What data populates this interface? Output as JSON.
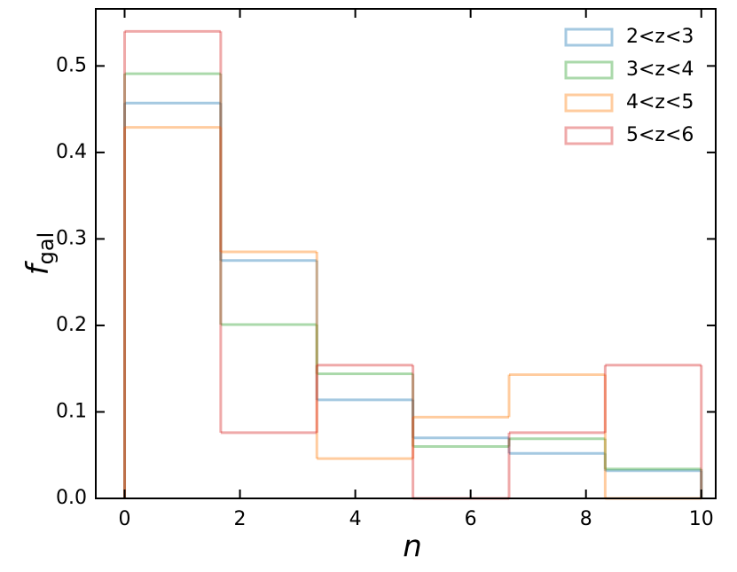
{
  "chart_data": {
    "type": "histogram",
    "xlabel": "n",
    "ylabel": {
      "main": "f",
      "sub": "gal"
    },
    "bins": [
      0,
      1.6667,
      3.3333,
      5,
      6.6667,
      8.3333,
      10
    ],
    "series": [
      {
        "name": "2<z<3",
        "color": "#1f77b4",
        "values": [
          0.457,
          0.275,
          0.114,
          0.07,
          0.052,
          0.032
        ]
      },
      {
        "name": "3<z<4",
        "color": "#2ca02c",
        "values": [
          0.491,
          0.201,
          0.144,
          0.06,
          0.069,
          0.034
        ]
      },
      {
        "name": "4<z<5",
        "color": "#ff7f0e",
        "values": [
          0.429,
          0.285,
          0.046,
          0.094,
          0.143,
          0
        ]
      },
      {
        "name": "5<z<6",
        "color": "#d62728",
        "values": [
          0.54,
          0.076,
          0.154,
          0,
          0.076,
          0.154
        ]
      }
    ],
    "alpha": 0.4,
    "xlim": [
      -0.5,
      10.25
    ],
    "ylim": [
      0,
      0.566
    ],
    "xticks": [
      0,
      2,
      4,
      6,
      8,
      10
    ],
    "yticks": [
      {
        "value": 0,
        "label": "0.0"
      },
      0.1,
      0.2,
      0.3,
      0.4,
      0.5
    ],
    "legend": "upper right"
  }
}
